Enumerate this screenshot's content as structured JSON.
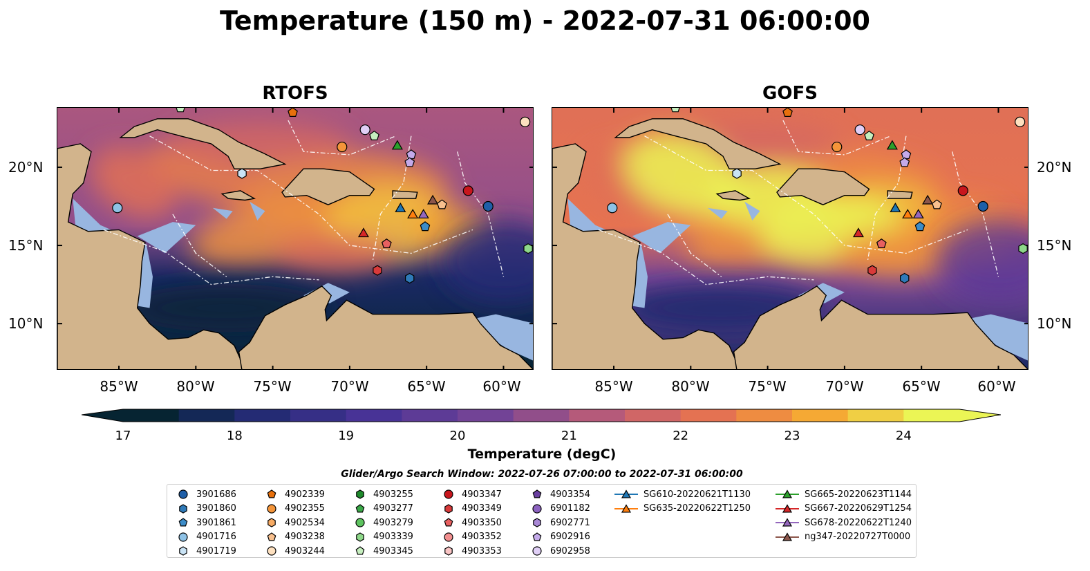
{
  "title": "Temperature (150 m) - 2022-07-31 06:00:00",
  "panels": [
    {
      "name": "RTOFS",
      "palette": "cool"
    },
    {
      "name": "GOFS",
      "palette": "warm"
    }
  ],
  "lat_labels": [
    "20°N",
    "15°N",
    "10°N"
  ],
  "lon_labels": [
    "85°W",
    "80°W",
    "75°W",
    "70°W",
    "65°W",
    "60°W"
  ],
  "colorbar": {
    "label": "Temperature (degC)",
    "ticks": [
      "17",
      "18",
      "19",
      "20",
      "21",
      "22",
      "23",
      "24"
    ],
    "min": 17,
    "max": 24.5,
    "step": 0.5,
    "extend": "both"
  },
  "colors": {
    "land": "#d2b48c",
    "shelf": "#98b6e0"
  },
  "search_window": "Glider/Argo Search Window: 2022-07-26 07:00:00 to 2022-07-31 06:00:00",
  "legend": [
    {
      "label": "3901686",
      "marker": "circle",
      "color": "#1f5fa8"
    },
    {
      "label": "3901860",
      "marker": "hexagon",
      "color": "#2f7ab8"
    },
    {
      "label": "3901861",
      "marker": "pentagon",
      "color": "#3c8cc8"
    },
    {
      "label": "4901716",
      "marker": "circle",
      "color": "#8ec2e6"
    },
    {
      "label": "4901719",
      "marker": "hexagon",
      "color": "#c9e3f5"
    },
    {
      "label": "4902339",
      "marker": "pentagon",
      "color": "#e8700c"
    },
    {
      "label": "4902355",
      "marker": "circle",
      "color": "#f4953a"
    },
    {
      "label": "4902534",
      "marker": "hexagon",
      "color": "#f7ab64"
    },
    {
      "label": "4903238",
      "marker": "pentagon",
      "color": "#f8c08e"
    },
    {
      "label": "4903244",
      "marker": "circle",
      "color": "#fde0bf"
    },
    {
      "label": "4903255",
      "marker": "hexagon",
      "color": "#1e8a2c"
    },
    {
      "label": "4903277",
      "marker": "pentagon",
      "color": "#3aa847"
    },
    {
      "label": "4903279",
      "marker": "circle",
      "color": "#5dc35f"
    },
    {
      "label": "4903339",
      "marker": "hexagon",
      "color": "#8ed88a"
    },
    {
      "label": "4903345",
      "marker": "pentagon",
      "color": "#c6efbf"
    },
    {
      "label": "4903347",
      "marker": "circle",
      "color": "#c8161d"
    },
    {
      "label": "4903349",
      "marker": "hexagon",
      "color": "#d93a3a"
    },
    {
      "label": "4903350",
      "marker": "pentagon",
      "color": "#e86060"
    },
    {
      "label": "4903352",
      "marker": "circle",
      "color": "#f28f8f"
    },
    {
      "label": "4903353",
      "marker": "hexagon",
      "color": "#f9c4c4"
    },
    {
      "label": "4903354",
      "marker": "pentagon",
      "color": "#6a3fa0"
    },
    {
      "label": "6901182",
      "marker": "circle",
      "color": "#8c62c0"
    },
    {
      "label": "6902771",
      "marker": "hexagon",
      "color": "#a988d6"
    },
    {
      "label": "6902916",
      "marker": "pentagon",
      "color": "#c4aaea"
    },
    {
      "label": "6902958",
      "marker": "circle",
      "color": "#e0cff6"
    },
    {
      "label": "SG610-20220621T1130",
      "marker": "triangle",
      "color": "#1f77b4",
      "line": true
    },
    {
      "label": "SG635-20220622T1250",
      "marker": "triangle",
      "color": "#ff7f0e",
      "line": true
    },
    {
      "label": "SG665-20220623T1144",
      "marker": "triangle",
      "color": "#2ca02c",
      "line": true
    },
    {
      "label": "SG667-20220629T1254",
      "marker": "triangle",
      "color": "#d62728",
      "line": true
    },
    {
      "label": "SG678-20220622T1240",
      "marker": "triangle",
      "color": "#9467bd",
      "line": true
    },
    {
      "label": "ng347-20220727T0000",
      "marker": "triangle",
      "color": "#8c564b",
      "line": true
    }
  ],
  "observations": [
    {
      "id": "4903345",
      "lon": -81.0,
      "lat": 23.8
    },
    {
      "id": "4902339",
      "lon": -73.7,
      "lat": 23.5
    },
    {
      "id": "4903244",
      "lon": -58.6,
      "lat": 22.9
    },
    {
      "id": "6902958",
      "lon": -69.0,
      "lat": 22.4
    },
    {
      "id": "4903345",
      "lon": -68.4,
      "lat": 22.0
    },
    {
      "id": "SG665-20220623T1144",
      "lon": -66.9,
      "lat": 21.4
    },
    {
      "id": "4902355",
      "lon": -70.5,
      "lat": 21.3
    },
    {
      "id": "6902916",
      "lon": -66.0,
      "lat": 20.8
    },
    {
      "id": "6902916",
      "lon": -66.1,
      "lat": 20.3
    },
    {
      "id": "4901719",
      "lon": -77.0,
      "lat": 19.6
    },
    {
      "id": "4903347",
      "lon": -62.3,
      "lat": 18.5
    },
    {
      "id": "ng347-20220727T0000",
      "lon": -64.6,
      "lat": 17.9
    },
    {
      "id": "4903238",
      "lon": -64.0,
      "lat": 17.6
    },
    {
      "id": "3901686",
      "lon": -61.0,
      "lat": 17.5
    },
    {
      "id": "4901716",
      "lon": -85.1,
      "lat": 17.4
    },
    {
      "id": "SG610-20220621T1130",
      "lon": -66.7,
      "lat": 17.4
    },
    {
      "id": "SG635-20220622T1250",
      "lon": -65.9,
      "lat": 17.0
    },
    {
      "id": "SG678-20220622T1240",
      "lon": -65.2,
      "lat": 17.0
    },
    {
      "id": "3901861",
      "lon": -65.1,
      "lat": 16.2
    },
    {
      "id": "SG667-20220629T1254",
      "lon": -69.1,
      "lat": 15.8
    },
    {
      "id": "4903350",
      "lon": -67.6,
      "lat": 15.1
    },
    {
      "id": "4903339",
      "lon": -58.4,
      "lat": 14.8
    },
    {
      "id": "4903349",
      "lon": -68.2,
      "lat": 13.4
    },
    {
      "id": "3901860",
      "lon": -66.1,
      "lat": 12.9
    }
  ]
}
